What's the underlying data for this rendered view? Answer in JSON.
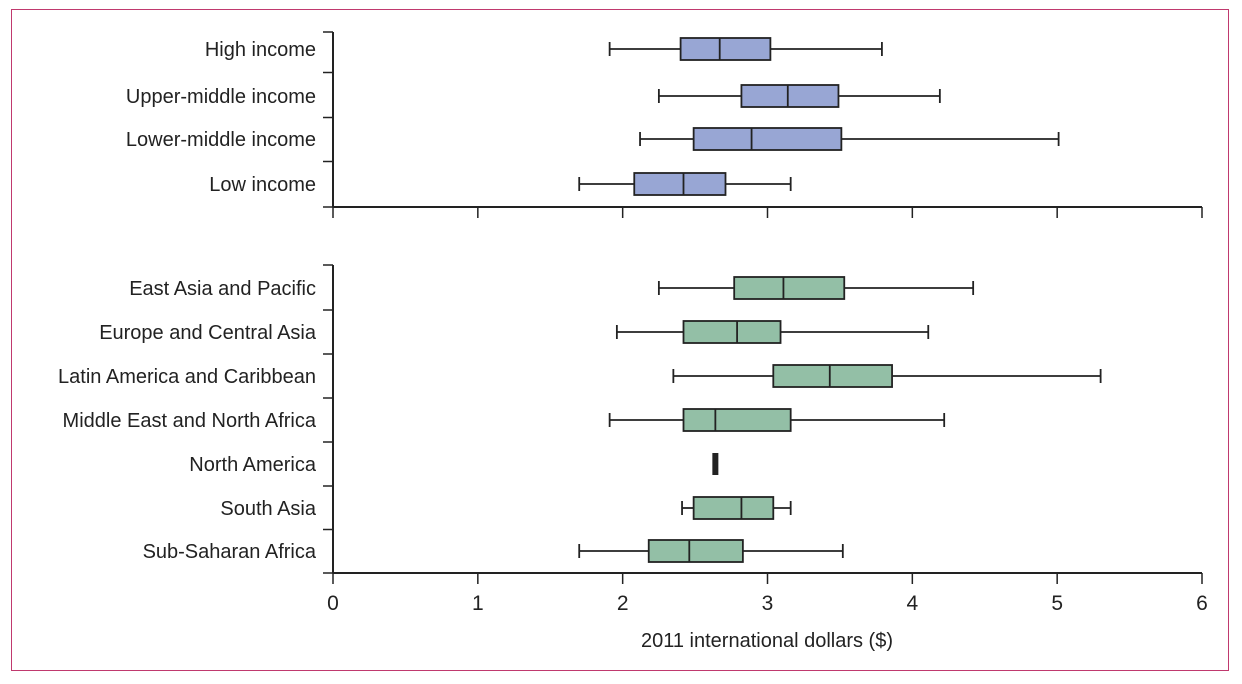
{
  "chart_data": {
    "type": "boxplot",
    "xlabel": "2011 international dollars ($)",
    "xlim": [
      0,
      6
    ],
    "xticks": [
      "0",
      "1",
      "2",
      "3",
      "4",
      "5",
      "6"
    ],
    "colors": {
      "income": "#98a6d4",
      "region": "#93bfa6",
      "frame": "#c0396e"
    },
    "panels": [
      {
        "name": "income",
        "series": [
          {
            "label": "High income",
            "min": 1.91,
            "q1": 2.4,
            "median": 2.67,
            "q3": 3.02,
            "max": 3.79
          },
          {
            "label": "Upper-middle income",
            "min": 2.25,
            "q1": 2.82,
            "median": 3.14,
            "q3": 3.49,
            "max": 4.19
          },
          {
            "label": "Lower-middle income",
            "min": 2.12,
            "q1": 2.49,
            "median": 2.89,
            "q3": 3.51,
            "max": 5.01
          },
          {
            "label": "Low income",
            "min": 1.7,
            "q1": 2.08,
            "median": 2.42,
            "q3": 2.71,
            "max": 3.16
          }
        ]
      },
      {
        "name": "region",
        "series": [
          {
            "label": "East Asia and Pacific",
            "min": 2.25,
            "q1": 2.77,
            "median": 3.11,
            "q3": 3.53,
            "max": 4.42
          },
          {
            "label": "Europe and Central Asia",
            "min": 1.96,
            "q1": 2.42,
            "median": 2.79,
            "q3": 3.09,
            "max": 4.11
          },
          {
            "label": "Latin America and Caribbean",
            "min": 2.35,
            "q1": 3.04,
            "median": 3.43,
            "q3": 3.86,
            "max": 5.3
          },
          {
            "label": "Middle East and North Africa",
            "min": 1.91,
            "q1": 2.42,
            "median": 2.64,
            "q3": 3.16,
            "max": 4.22
          },
          {
            "label": "North America",
            "min": 2.64,
            "q1": 2.64,
            "median": 2.64,
            "q3": 2.64,
            "max": 2.64
          },
          {
            "label": "South Asia",
            "min": 2.41,
            "q1": 2.49,
            "median": 2.82,
            "q3": 3.04,
            "max": 3.16
          },
          {
            "label": "Sub-Saharan Africa",
            "min": 1.7,
            "q1": 2.18,
            "median": 2.46,
            "q3": 2.83,
            "max": 3.52
          }
        ]
      }
    ]
  }
}
